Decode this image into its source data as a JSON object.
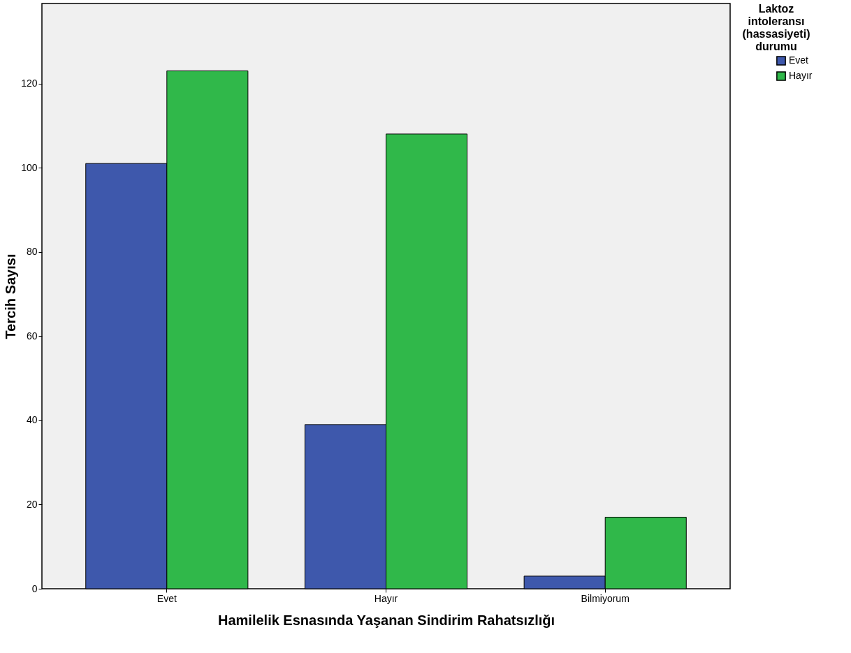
{
  "chart_data": {
    "type": "bar",
    "xlabel": "Hamilelik Esnasında Yaşanan Sindirim Rahatsızlığı",
    "ylabel": "Tercih Sayısı",
    "legend_title": "Laktoz intoleransı (hassasiyeti) durumu",
    "categories": [
      "Evet",
      "Hayır",
      "Bilmiyorum"
    ],
    "series": [
      {
        "name": "Evet",
        "color": "#3e58ac",
        "values": [
          101,
          39,
          3
        ]
      },
      {
        "name": "Hayır",
        "color": "#30b84a",
        "values": [
          123,
          108,
          17
        ]
      }
    ],
    "ylim": [
      0,
      139
    ],
    "yticks": [
      0,
      20,
      40,
      60,
      80,
      100,
      120
    ],
    "grid": false,
    "legend": "top right"
  }
}
